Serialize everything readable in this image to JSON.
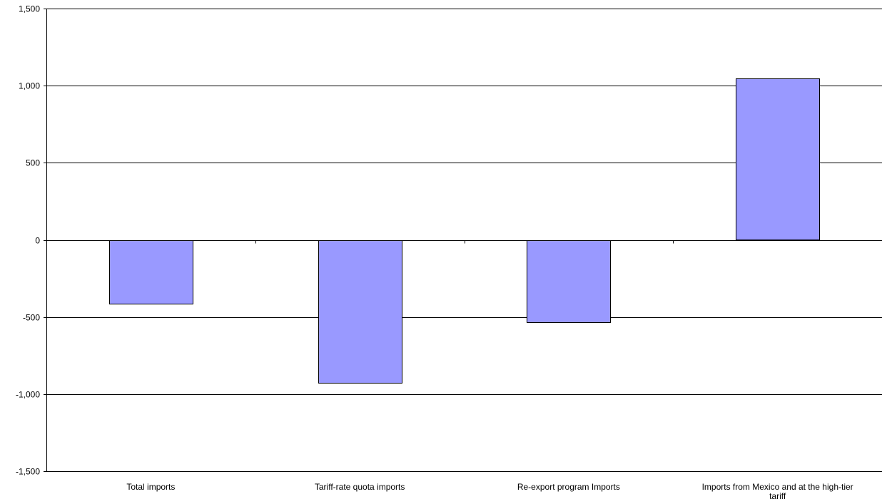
{
  "chart_data": {
    "type": "bar",
    "title": "",
    "xlabel": "",
    "ylabel": "",
    "categories": [
      "Total imports",
      "Tariff-rate quota imports",
      "Re-export program Imports",
      "Imports from Mexico and at the high-tier tariff"
    ],
    "category_label_lines": [
      [
        "Total imports"
      ],
      [
        "Tariff-rate quota imports"
      ],
      [
        "Re-export program Imports"
      ],
      [
        "Imports from Mexico and at the high-tier",
        "tariff"
      ]
    ],
    "values": [
      -410,
      -925,
      -530,
      1045
    ],
    "ylim": [
      -1500,
      1500
    ],
    "yticks": [
      1500,
      1000,
      500,
      0,
      -500,
      -1000,
      -1500
    ],
    "ytick_labels": [
      "1,500",
      "1,000",
      "500",
      "0",
      "-500",
      "-1,000",
      "-1,500"
    ],
    "grid": true,
    "legend": "none",
    "bar_color": "#9999ff"
  }
}
